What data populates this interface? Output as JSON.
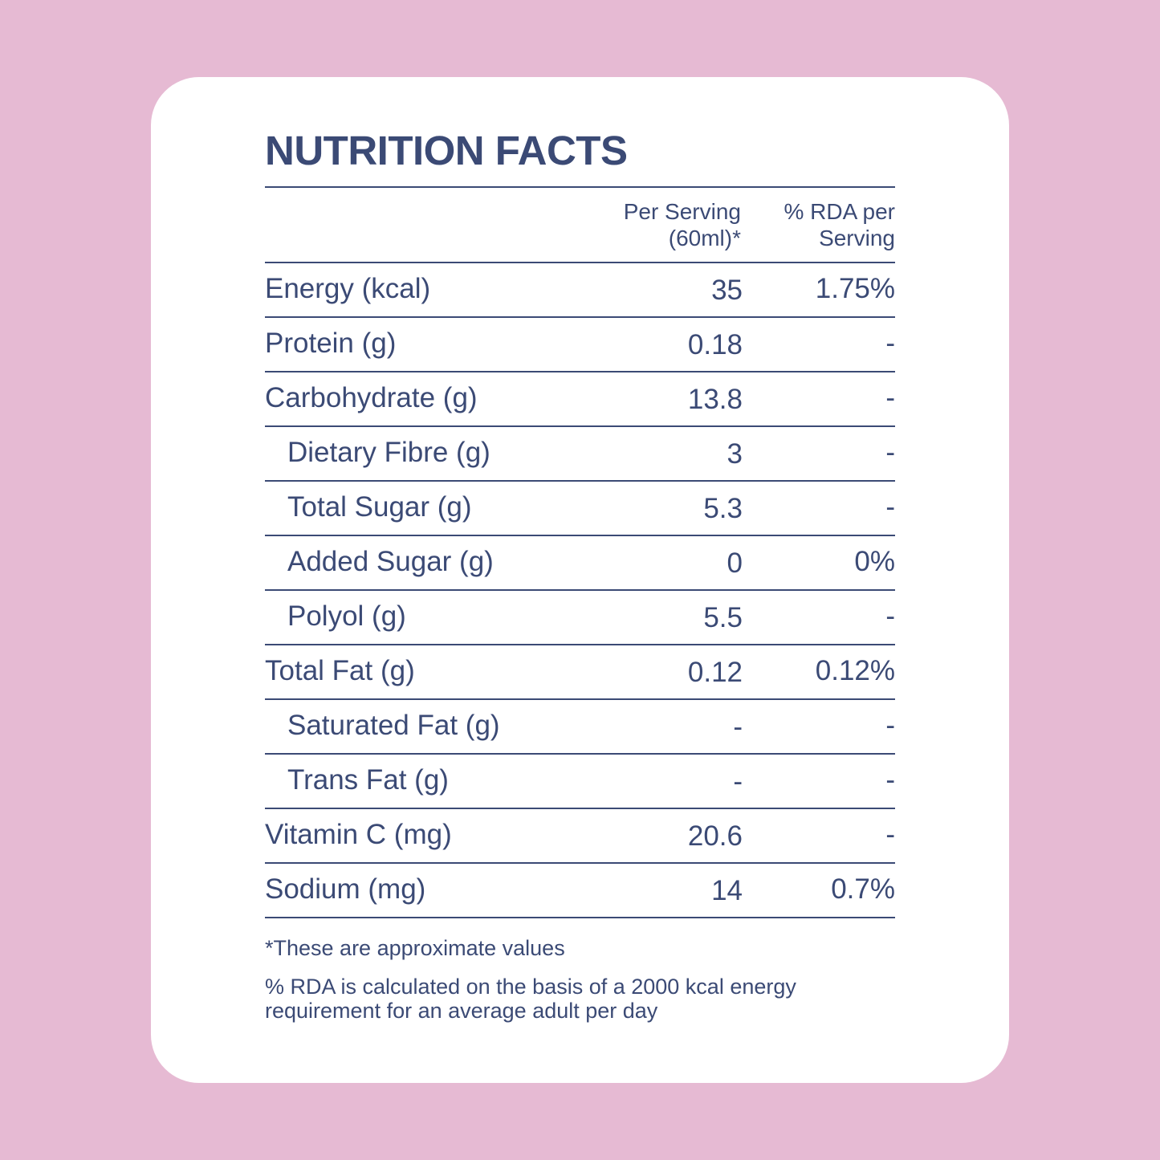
{
  "title": "NUTRITION FACTS",
  "columns": {
    "per_serving": "Per Serving\n(60ml)*",
    "rda": "% RDA per\nServing"
  },
  "rows": [
    {
      "name": "Energy (kcal)",
      "value": "35",
      "rda": "1.75%",
      "indent": false
    },
    {
      "name": "Protein (g)",
      "value": "0.18",
      "rda": "-",
      "indent": false
    },
    {
      "name": "Carbohydrate (g)",
      "value": "13.8",
      "rda": "-",
      "indent": false
    },
    {
      "name": "Dietary Fibre (g)",
      "value": "3",
      "rda": "-",
      "indent": true
    },
    {
      "name": "Total Sugar (g)",
      "value": "5.3",
      "rda": "-",
      "indent": true
    },
    {
      "name": "Added Sugar (g)",
      "value": "0",
      "rda": "0%",
      "indent": true
    },
    {
      "name": "Polyol (g)",
      "value": "5.5",
      "rda": "-",
      "indent": true
    },
    {
      "name": "Total Fat (g)",
      "value": "0.12",
      "rda": "0.12%",
      "indent": false
    },
    {
      "name": "Saturated Fat (g)",
      "value": "-",
      "rda": "-",
      "indent": true
    },
    {
      "name": "Trans Fat (g)",
      "value": "-",
      "rda": "-",
      "indent": true
    },
    {
      "name": "Vitamin C (mg)",
      "value": "20.6",
      "rda": "-",
      "indent": false
    },
    {
      "name": "Sodium (mg)",
      "value": "14",
      "rda": "0.7%",
      "indent": false
    }
  ],
  "footnotes": {
    "approx": "*These are approximate values",
    "rda_basis": "%  RDA is calculated on the basis of a 2000 kcal energy\nrequirement for an average adult per day"
  },
  "colors": {
    "background": "#e6bad3",
    "card": "#ffffff",
    "text": "#3b4a75"
  }
}
